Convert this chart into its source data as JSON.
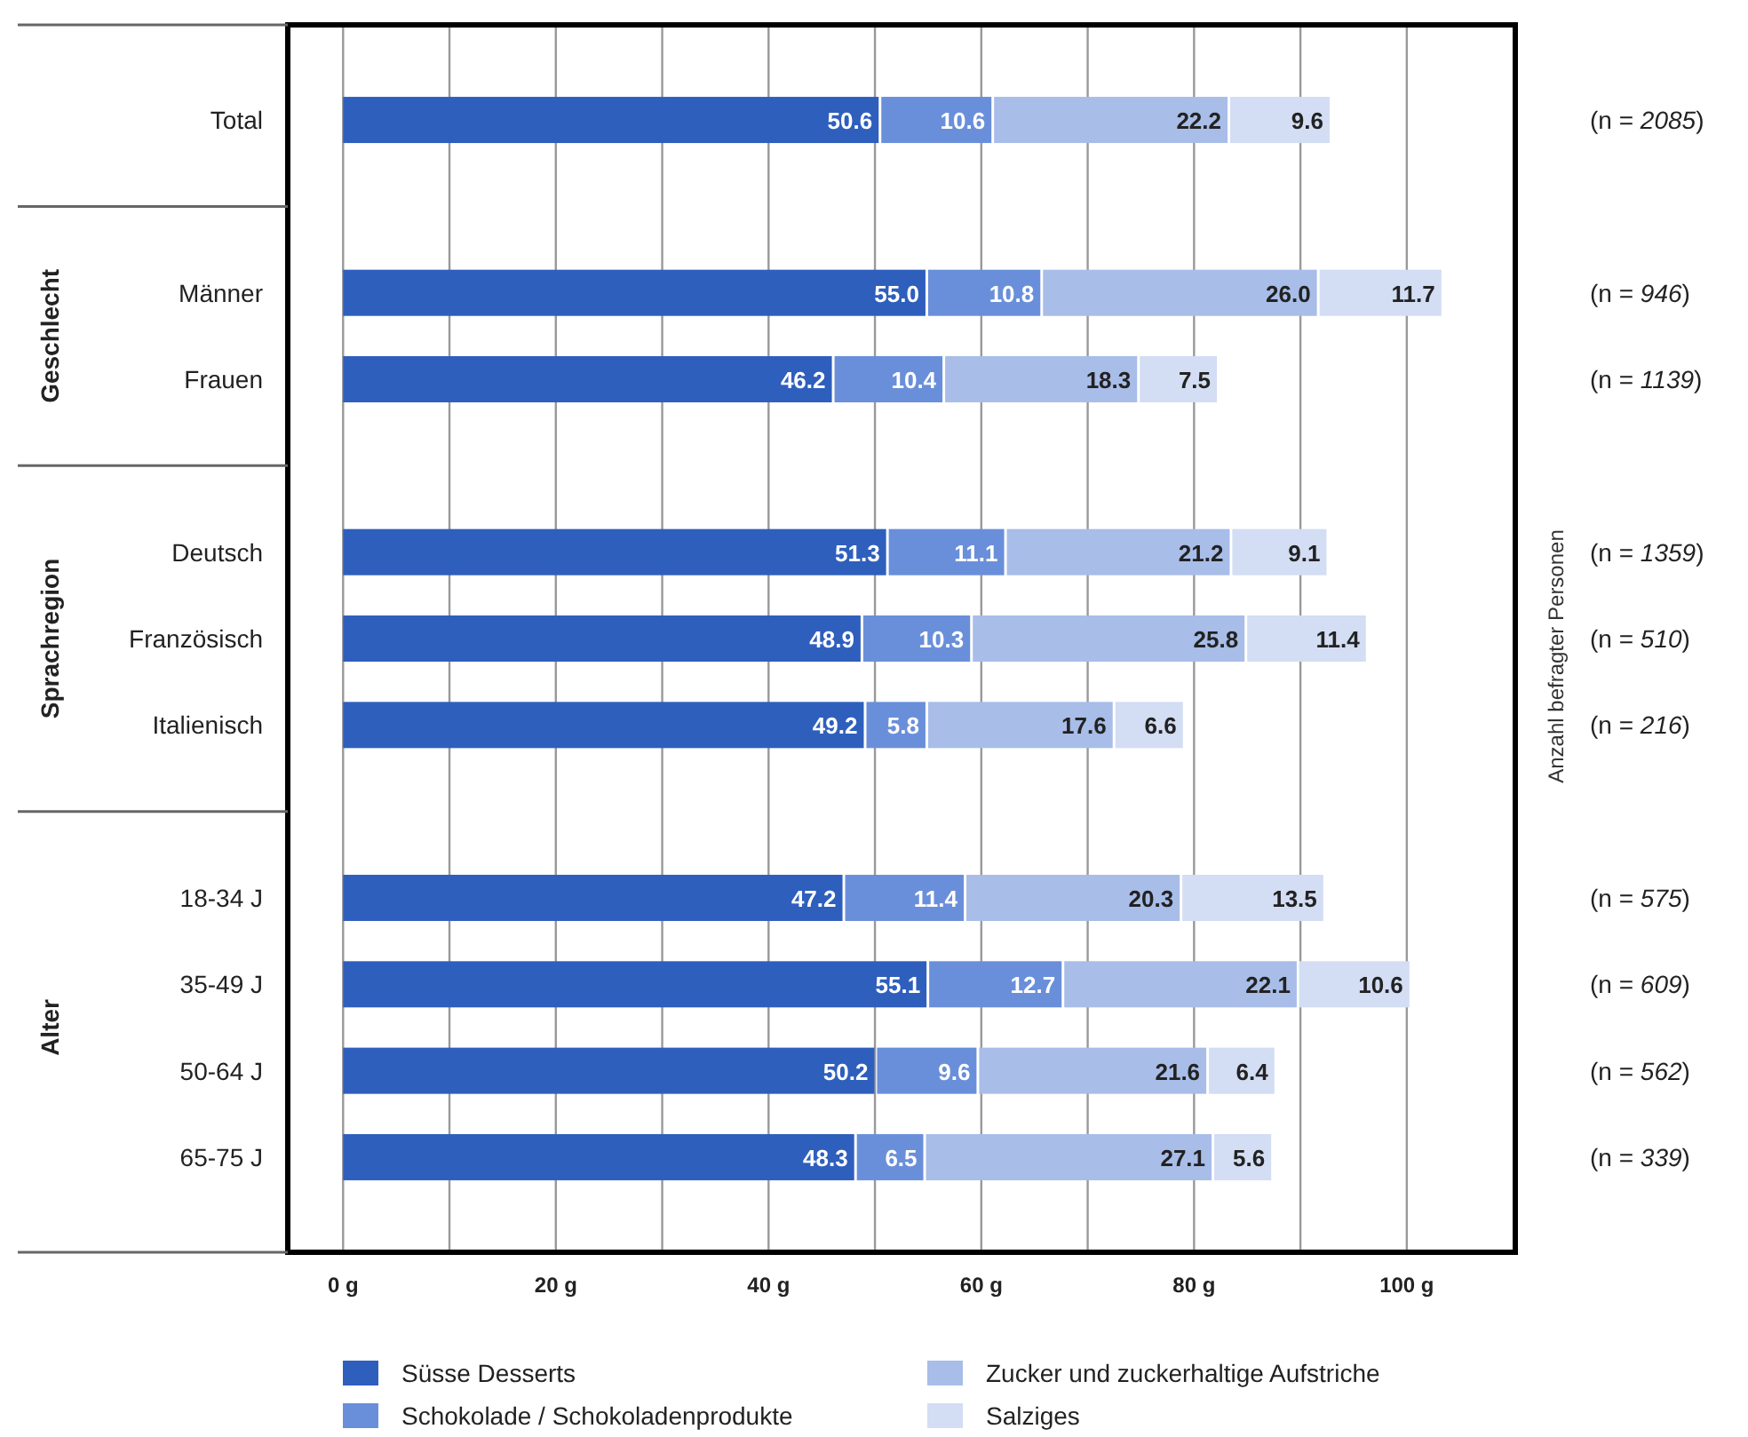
{
  "chart_data": {
    "type": "bar",
    "orientation": "horizontal",
    "stacked": true,
    "categories": [
      "Total",
      null,
      "Männer",
      "Frauen",
      null,
      "Deutsch",
      "Französisch",
      "Italienisch",
      null,
      "18-34 J",
      "35-49 J",
      "50-64 J",
      "65-75 J"
    ],
    "series": [
      {
        "name": "Süsse Desserts",
        "color": "#2f5fbd",
        "values": [
          50.6,
          null,
          55.0,
          46.2,
          null,
          51.3,
          48.9,
          49.2,
          null,
          47.2,
          55.1,
          50.2,
          48.3
        ],
        "value_labels": [
          "50.6",
          null,
          "55.0",
          "46.2",
          null,
          "51.3",
          "48.9",
          "49.2",
          null,
          "47.2",
          "55.1",
          "50.2",
          "48.3"
        ]
      },
      {
        "name": "Schokolade / Schokoladenprodukte",
        "color": "#6a8fda",
        "values": [
          10.6,
          null,
          10.8,
          10.4,
          null,
          11.1,
          10.3,
          5.8,
          null,
          11.4,
          12.7,
          9.6,
          6.5
        ],
        "value_labels": [
          "10.6",
          null,
          "10.8",
          "10.4",
          null,
          "11.1",
          "10.3",
          "5.8",
          null,
          "11.4",
          "12.7",
          "9.6",
          "6.5"
        ]
      },
      {
        "name": "Zucker und zuckerhaltige Aufstriche",
        "color": "#a8bde8",
        "values": [
          22.2,
          null,
          26.0,
          18.3,
          null,
          21.2,
          25.8,
          17.6,
          null,
          20.3,
          22.1,
          21.6,
          27.1
        ],
        "value_labels": [
          "22.2",
          null,
          "26.0",
          "18.3",
          null,
          "21.2",
          "25.8",
          "17.6",
          null,
          "20.3",
          "22.1",
          "21.6",
          "27.1"
        ]
      },
      {
        "name": "Salziges",
        "color": "#d3ddf3",
        "values": [
          9.6,
          null,
          11.7,
          7.5,
          null,
          9.1,
          11.4,
          6.6,
          null,
          13.5,
          10.6,
          6.4,
          5.6
        ],
        "value_labels": [
          "9.6",
          null,
          "11.7",
          "7.5",
          null,
          "9.1",
          "11.4",
          "6.6",
          null,
          "13.5",
          "10.6",
          "6.4",
          "5.6"
        ]
      }
    ],
    "xlim": [
      -5.2,
      110.2
    ],
    "xticks": [
      {
        "value": 0,
        "label": "0 g"
      },
      {
        "value": 10,
        "label": null
      },
      {
        "value": 20,
        "label": "20 g"
      },
      {
        "value": 30,
        "label": null
      },
      {
        "value": 40,
        "label": "40 g"
      },
      {
        "value": 50,
        "label": null
      },
      {
        "value": 60,
        "label": "60 g"
      },
      {
        "value": 70,
        "label": null
      },
      {
        "value": 80,
        "label": "80 g"
      },
      {
        "value": 90,
        "label": null
      },
      {
        "value": 100,
        "label": "100 g"
      }
    ],
    "grid": "x",
    "legend": "bottom",
    "y2label": "Anzahl befragter Personen",
    "annotations": [
      "Geschlecht",
      "Sprachregion",
      "Alter",
      "(n = 2085)",
      "(n = 946)",
      "(n = 1139)",
      "(n = 1359)",
      "(n = 510)",
      "(n = 216)",
      "(n = 575)",
      "(n = 609)",
      "(n = 562)",
      "(n = 339)"
    ]
  }
}
